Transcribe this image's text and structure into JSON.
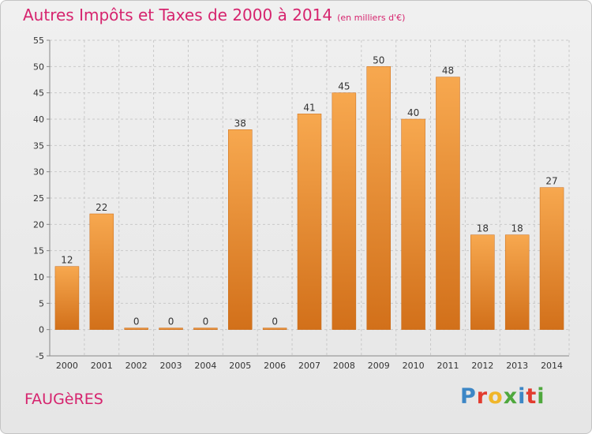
{
  "header": {
    "title": "Autres Impôts et Taxes de 2000 à 2014",
    "unit_note": "(en milliers d'€)"
  },
  "footer": {
    "town": "FAUGèRES",
    "brand": "Proxiti",
    "brand_colors": [
      "#3d87c6",
      "#e23c2f",
      "#f0b62a",
      "#4fa83d",
      "#3d87c6",
      "#e23c2f",
      "#4fa83d"
    ]
  },
  "colors": {
    "title": "#d6246e",
    "bar_top": "#f7a84f",
    "bar_bottom": "#d2701a",
    "bar_edge": "#c96a17",
    "grid": "#c9c9c9",
    "axis_text": "#333333"
  },
  "chart_data": {
    "type": "bar",
    "categories": [
      "2000",
      "2001",
      "2002",
      "2003",
      "2004",
      "2005",
      "2006",
      "2007",
      "2008",
      "2009",
      "2010",
      "2011",
      "2012",
      "2013",
      "2014"
    ],
    "values": [
      12,
      22,
      0,
      0,
      0,
      38,
      0,
      41,
      45,
      50,
      40,
      48,
      18,
      18,
      27
    ],
    "data_labels": [
      "12",
      "22",
      "0",
      "0",
      "0",
      "38",
      "0",
      "41",
      "45",
      "50",
      "40",
      "48",
      "18",
      "18",
      "27"
    ],
    "ylim": [
      -5,
      55
    ],
    "yticks": [
      -5,
      0,
      5,
      10,
      15,
      20,
      25,
      30,
      35,
      40,
      45,
      50,
      55
    ],
    "grid": "horizontal dashed",
    "legend": "none"
  }
}
